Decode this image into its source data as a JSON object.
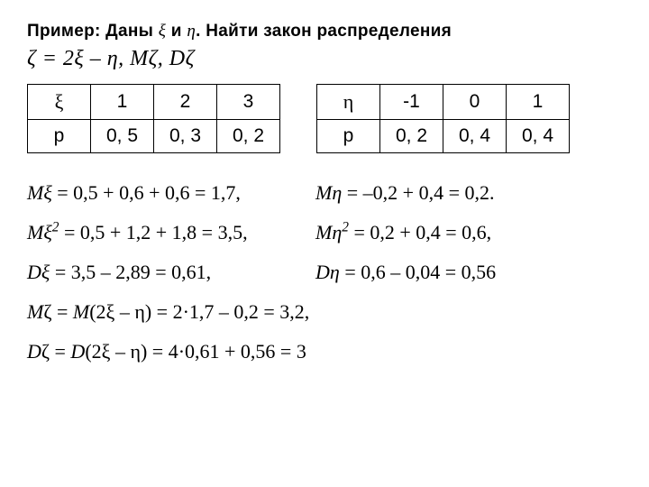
{
  "title": {
    "prefix": "Пример:  Даны  ",
    "xi": "ξ",
    "mid": "  и  ",
    "eta": "η",
    "suffix": ".  Найти  закон распределения"
  },
  "definition": "ζ = 2ξ – η,  Mζ,  Dζ",
  "table_xi": {
    "head": [
      "ξ",
      "1",
      "2",
      "3"
    ],
    "prob": [
      "p",
      "0, 5",
      "0, 3",
      "0, 2"
    ]
  },
  "table_eta": {
    "head": [
      "η",
      "-1",
      "0",
      "1"
    ],
    "prob": [
      "p",
      "0, 2",
      "0, 4",
      "0, 4"
    ]
  },
  "eq": {
    "r1l": "Mξ = 0,5 + 0,6 + 0,6 = 1,7,",
    "r1r": "Mη = –0,2 + 0,4 = 0,2.",
    "r2l": "Mξ² = 0,5 + 1,2 + 1,8 = 3,5,",
    "r2r": "Mη² = 0,2 + 0,4 = 0,6,",
    "r3l": "Dξ = 3,5 – 2,89 = 0,61,",
    "r3r": "Dη = 0,6 – 0,04 = 0,56",
    "r4": "Mζ = M(2ξ – η) = 2·1,7 – 0,2 = 3,2,",
    "r5": "Dζ = D(2ξ – η) = 4·0,61 + 0,56 = 3"
  }
}
